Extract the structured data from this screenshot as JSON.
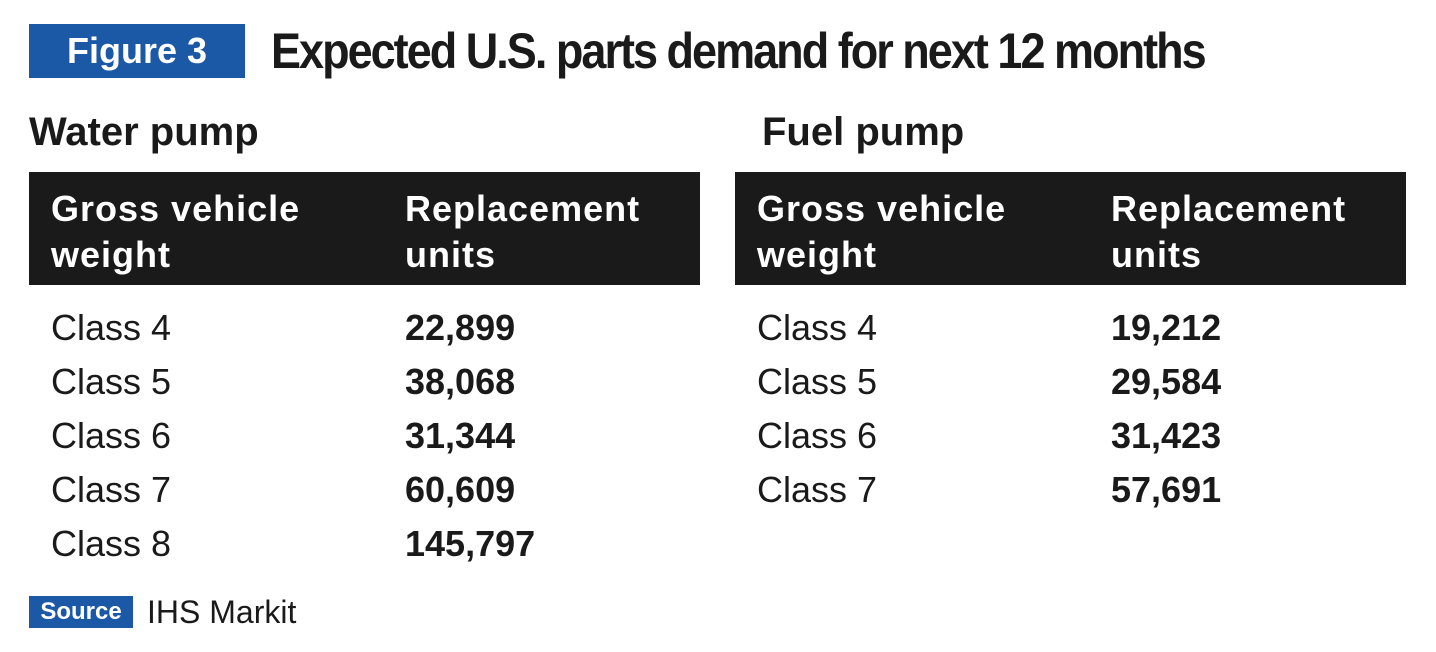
{
  "figure": {
    "badge": "Figure 3",
    "title": "Expected U.S. parts demand for next 12 months"
  },
  "tables": {
    "water": {
      "title": "Water pump",
      "headers": [
        "Gross vehicle weight",
        "Replacement units"
      ],
      "rows": [
        {
          "class": "Class 4",
          "units": "22,899"
        },
        {
          "class": "Class 5",
          "units": "38,068"
        },
        {
          "class": "Class 6",
          "units": "31,344"
        },
        {
          "class": "Class 7",
          "units": "60,609"
        },
        {
          "class": "Class 8",
          "units": "145,797"
        }
      ]
    },
    "fuel": {
      "title": "Fuel pump",
      "headers": [
        "Gross vehicle weight",
        "Replacement units"
      ],
      "rows": [
        {
          "class": "Class 4",
          "units": "19,212"
        },
        {
          "class": "Class 5",
          "units": "29,584"
        },
        {
          "class": "Class 6",
          "units": "31,423"
        },
        {
          "class": "Class 7",
          "units": "57,691"
        }
      ]
    }
  },
  "source": {
    "label": "Source",
    "text": "IHS Markit"
  },
  "colors": {
    "accent": "#1b58a6",
    "header_bg": "#1a1a1a",
    "text": "#1a1a1a"
  }
}
